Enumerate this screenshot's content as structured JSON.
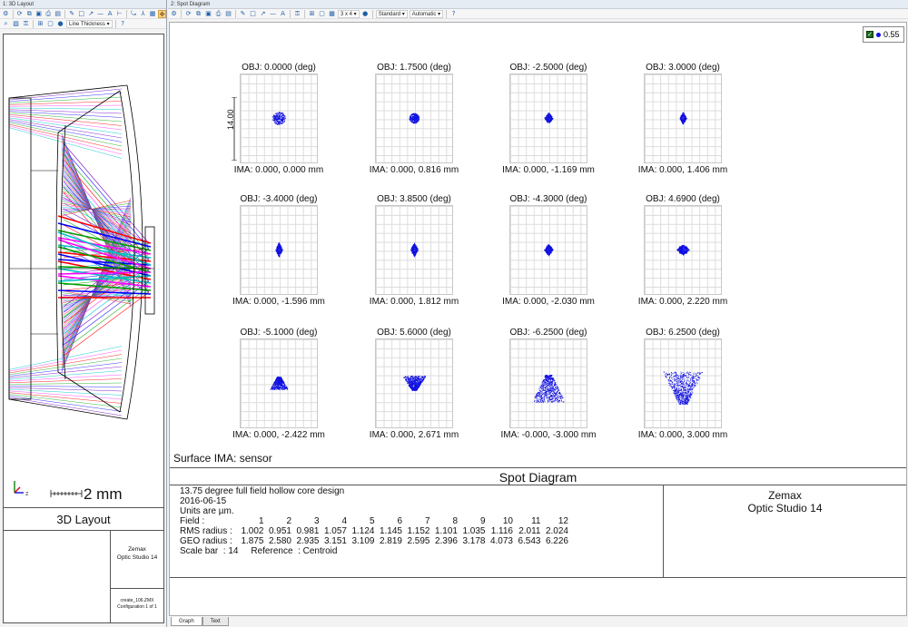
{
  "left_window": {
    "title": "1: 3D Layout",
    "toolbar_line_thickness": "Line Thickness ▾",
    "scale_text": "2 mm",
    "panel_title": "3D Layout",
    "info_brand_line1": "Zemax",
    "info_brand_line2": "Optic Studio 14",
    "file_name": "create_106.ZMX",
    "configuration": "Configuration 1 of 1"
  },
  "right_window": {
    "title": "2: Spot Diagram",
    "toolbar_layout": "3 x 4 ▾",
    "toolbar_standard": "Standard ▾",
    "toolbar_automatic": "Automatic ▾",
    "legend_value": "0.55",
    "scale_bar_label": "14.00",
    "spots": [
      {
        "obj": "OBJ: 0.0000 (deg)",
        "ima": "IMA: 0.000, 0.000 mm"
      },
      {
        "obj": "OBJ: 1.7500 (deg)",
        "ima": "IMA: 0.000, 0.816 mm"
      },
      {
        "obj": "OBJ: -2.5000 (deg)",
        "ima": "IMA: 0.000, -1.169 mm"
      },
      {
        "obj": "OBJ: 3.0000 (deg)",
        "ima": "IMA: 0.000, 1.406 mm"
      },
      {
        "obj": "OBJ: -3.4000 (deg)",
        "ima": "IMA: 0.000, -1.596 mm"
      },
      {
        "obj": "OBJ: 3.8500 (deg)",
        "ima": "IMA: 0.000, 1.812 mm"
      },
      {
        "obj": "OBJ: -4.3000 (deg)",
        "ima": "IMA: 0.000, -2.030 mm"
      },
      {
        "obj": "OBJ: 4.6900 (deg)",
        "ima": "IMA: 0.000, 2.220 mm"
      },
      {
        "obj": "OBJ: -5.1000 (deg)",
        "ima": "IMA: 0.000, -2.422 mm"
      },
      {
        "obj": "OBJ: 5.6000 (deg)",
        "ima": "IMA: 0.000, 2.671 mm"
      },
      {
        "obj": "OBJ: -6.2500 (deg)",
        "ima": "IMA: -0.000, -3.000 mm"
      },
      {
        "obj": "OBJ: 6.2500 (deg)",
        "ima": "IMA: 0.000, 3.000 mm"
      }
    ],
    "surface_label": "Surface IMA: sensor",
    "panel_title": "Spot Diagram",
    "info": {
      "line1": "13.75 degree full field hollow core design",
      "line2": "2016-06-15",
      "line3": "Units are µm.",
      "field_label": "Field      :",
      "fields": [
        "1",
        "2",
        "3",
        "4",
        "5",
        "6",
        "7",
        "8",
        "9",
        "10",
        "11",
        "12"
      ],
      "rms_label": "RMS radius :",
      "rms": [
        "1.002",
        "0.951",
        "0.981",
        "1.057",
        "1.124",
        "1.145",
        "1.152",
        "1.101",
        "1.035",
        "1.116",
        "2.011",
        "2.024"
      ],
      "geo_label": "GEO radius :",
      "geo": [
        "1.875",
        "2.580",
        "2.935",
        "3.151",
        "3.109",
        "2.819",
        "2.595",
        "2.396",
        "3.178",
        "4.073",
        "6.543",
        "6.226"
      ],
      "scale_line": "Scale bar  : 14     Reference  : Centroid"
    },
    "brand_line1": "Zemax",
    "brand_line2": "Optic Studio 14"
  },
  "tabs": [
    "Graph",
    "Text"
  ],
  "colors": {
    "spot": "#1010e0",
    "rays": [
      "#7a10c8",
      "#2020ff",
      "#20b020",
      "#ff1010",
      "#ff40ff",
      "#00c8c8"
    ]
  }
}
